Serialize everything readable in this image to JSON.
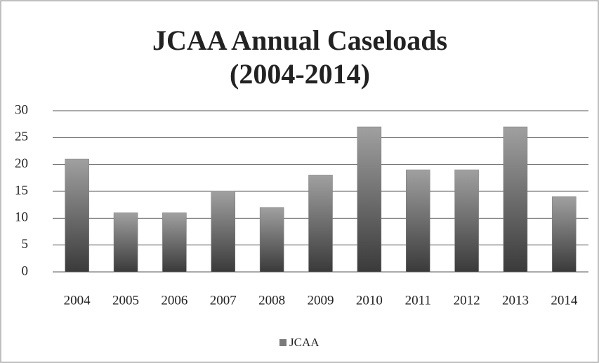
{
  "chart_data": {
    "type": "bar",
    "title": [
      "JCAA Annual Caseloads",
      "(2004-2014)"
    ],
    "categories": [
      "2004",
      "2005",
      "2006",
      "2007",
      "2008",
      "2009",
      "2010",
      "2011",
      "2012",
      "2013",
      "2014"
    ],
    "series": [
      {
        "name": "JCAA",
        "color": "#7a7a7a",
        "values": [
          21,
          11,
          11,
          15,
          12,
          18,
          27,
          19,
          19,
          27,
          14
        ]
      }
    ],
    "ylim": [
      0,
      30
    ],
    "yticks": [
      0,
      5,
      10,
      15,
      20,
      25,
      30
    ],
    "grid": true,
    "legend": "bottom"
  }
}
